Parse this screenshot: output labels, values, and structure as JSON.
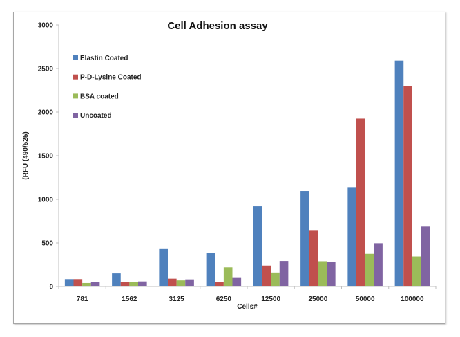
{
  "chart_data": {
    "type": "bar",
    "title": "Cell Adhesion assay",
    "xlabel": "Cells#",
    "ylabel": "(RFU (490/525)",
    "ylim": [
      0,
      3000
    ],
    "yticks": [
      0,
      500,
      1000,
      1500,
      2000,
      2500,
      3000
    ],
    "grid": false,
    "legend_position": "top-left",
    "categories": [
      "781",
      "1562",
      "3125",
      "6250",
      "12500",
      "25000",
      "50000",
      "100000"
    ],
    "series": [
      {
        "name": "Elastin Coated",
        "color": "#4F81BD",
        "values": [
          85,
          150,
          430,
          385,
          920,
          1095,
          1140,
          2590
        ]
      },
      {
        "name": "P-D-Lysine Coated",
        "color": "#C0504D",
        "values": [
          85,
          55,
          90,
          55,
          240,
          640,
          1925,
          2300
        ]
      },
      {
        "name": "BSA coated",
        "color": "#9BBB59",
        "values": [
          40,
          50,
          70,
          220,
          160,
          290,
          375,
          345
        ]
      },
      {
        "name": "Uncoated",
        "color": "#8064A2",
        "values": [
          52,
          58,
          82,
          98,
          293,
          285,
          497,
          688
        ]
      }
    ]
  }
}
